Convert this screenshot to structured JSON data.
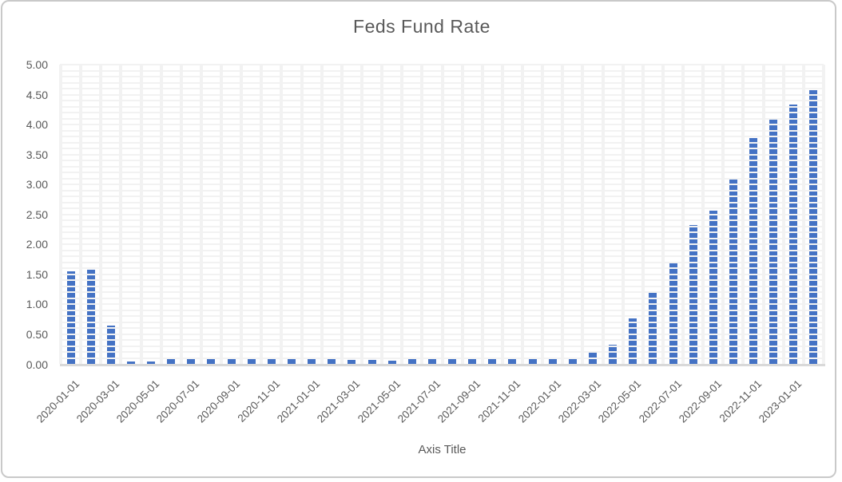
{
  "chart_data": {
    "type": "bar",
    "title": "Feds Fund Rate",
    "xlabel": "Axis Title",
    "ylabel": "",
    "ylim": [
      0,
      5
    ],
    "y_major_step": 0.5,
    "y_minor_step": 0.1,
    "y_tick_labels": [
      "0.00",
      "0.50",
      "1.00",
      "1.50",
      "2.00",
      "2.50",
      "3.00",
      "3.50",
      "4.00",
      "4.50",
      "5.00"
    ],
    "categories": [
      "2020-01-01",
      "2020-02-01",
      "2020-03-01",
      "2020-04-01",
      "2020-05-01",
      "2020-06-01",
      "2020-07-01",
      "2020-08-01",
      "2020-09-01",
      "2020-10-01",
      "2020-11-01",
      "2020-12-01",
      "2021-01-01",
      "2021-02-01",
      "2021-03-01",
      "2021-04-01",
      "2021-05-01",
      "2021-06-01",
      "2021-07-01",
      "2021-08-01",
      "2021-09-01",
      "2021-10-01",
      "2021-11-01",
      "2021-12-01",
      "2022-01-01",
      "2022-02-01",
      "2022-03-01",
      "2022-04-01",
      "2022-05-01",
      "2022-06-01",
      "2022-07-01",
      "2022-08-01",
      "2022-09-01",
      "2022-10-01",
      "2022-11-01",
      "2022-12-01",
      "2023-01-01",
      "2023-02-01"
    ],
    "values": [
      1.55,
      1.58,
      0.65,
      0.05,
      0.05,
      0.08,
      0.09,
      0.1,
      0.09,
      0.09,
      0.09,
      0.09,
      0.09,
      0.08,
      0.07,
      0.07,
      0.06,
      0.08,
      0.1,
      0.09,
      0.08,
      0.08,
      0.08,
      0.08,
      0.08,
      0.08,
      0.2,
      0.33,
      0.77,
      1.21,
      1.68,
      2.33,
      2.56,
      3.08,
      3.78,
      4.1,
      4.33,
      4.57
    ],
    "x_tick_labels": [
      "2020-01-01",
      "2020-03-01",
      "2020-05-01",
      "2020-07-01",
      "2020-09-01",
      "2020-11-01",
      "2021-01-01",
      "2021-03-01",
      "2021-05-01",
      "2021-07-01",
      "2021-09-01",
      "2021-11-01",
      "2022-01-01",
      "2022-03-01",
      "2022-05-01",
      "2022-07-01",
      "2022-09-01",
      "2022-11-01",
      "2023-01-01"
    ],
    "x_tick_every": 2,
    "legend_position": "none",
    "grid": "minor-both",
    "colors": {
      "bar": "#4472C4",
      "gridline": "#F2F2F2",
      "axis_line": "#D9D9D9",
      "text": "#595959",
      "chart_border": "#C9C9C9",
      "background": "#FFFFFF"
    }
  }
}
